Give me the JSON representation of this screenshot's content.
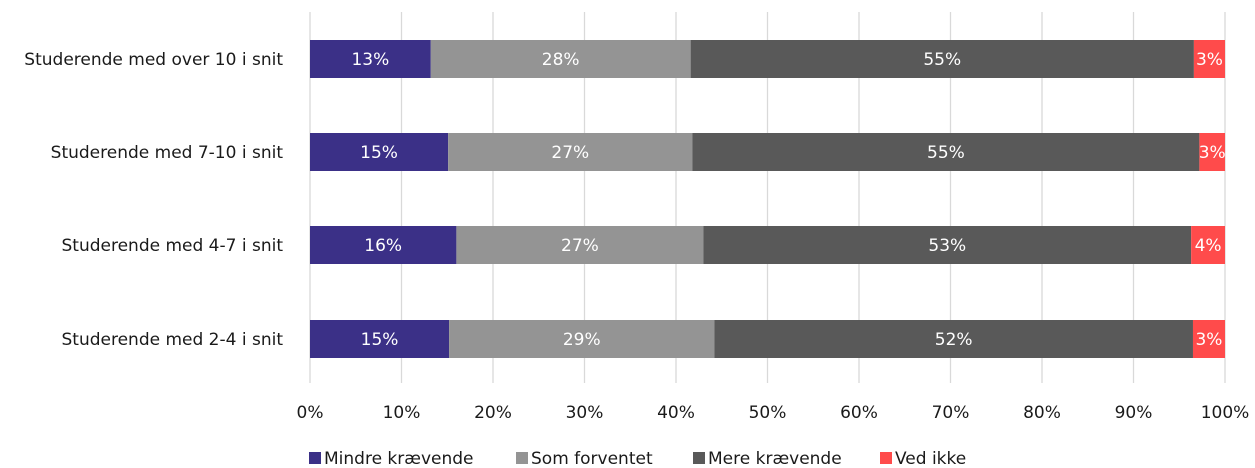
{
  "chart_data": {
    "type": "bar",
    "orientation": "horizontal",
    "stacked": true,
    "categories": [
      "Studerende med over 10 i snit",
      "Studerende med 7-10 i snit",
      "Studerende med 4-7 i snit",
      "Studerende med 2-4 i snit"
    ],
    "series": [
      {
        "name": "Mindre krævende",
        "color": "#3b3087",
        "values": [
          13.2,
          15.1,
          16.0,
          15.2
        ],
        "labels": [
          "13%",
          "15%",
          "16%",
          "15%"
        ]
      },
      {
        "name": "Som forventet",
        "color": "#949494",
        "values": [
          28.4,
          26.7,
          27.0,
          29.0
        ],
        "labels": [
          "28%",
          "27%",
          "27%",
          "29%"
        ]
      },
      {
        "name": "Mere krævende",
        "color": "#595959",
        "values": [
          55.0,
          55.4,
          53.3,
          52.3
        ],
        "labels": [
          "55%",
          "55%",
          "53%",
          "52%"
        ]
      },
      {
        "name": "Ved ikke",
        "color": "#ff4b4b",
        "values": [
          3.4,
          2.8,
          3.7,
          3.5
        ],
        "labels": [
          "3%",
          "3%",
          "4%",
          "3%"
        ]
      }
    ],
    "x_ticks": [
      "0%",
      "10%",
      "20%",
      "30%",
      "40%",
      "50%",
      "60%",
      "70%",
      "80%",
      "90%",
      "100%"
    ],
    "xlim": [
      0,
      100
    ],
    "grid": true,
    "legend_position": "bottom"
  }
}
